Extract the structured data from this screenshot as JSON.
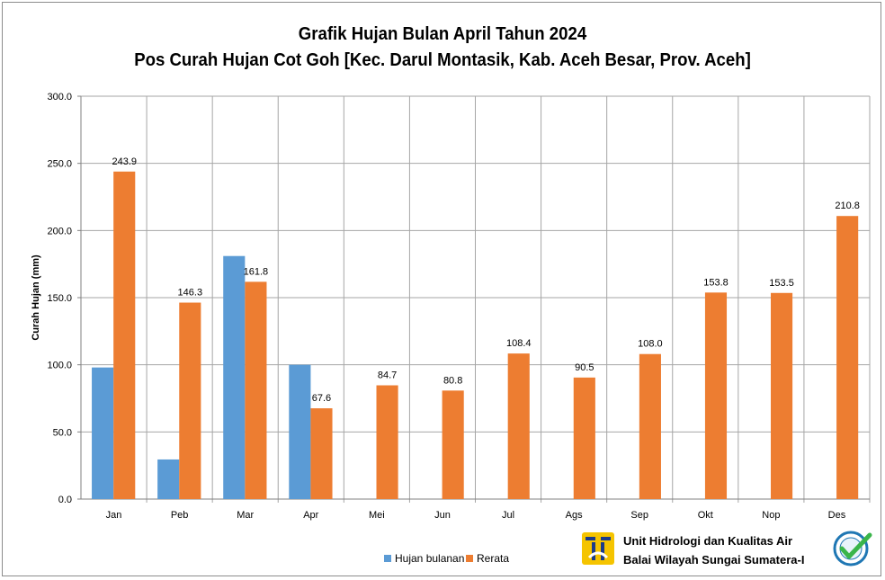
{
  "chart_data": {
    "type": "bar",
    "title": "Grafik Hujan  Bulan April Tahun 2024",
    "subtitle": "Pos Curah Hujan Cot Goh [Kec. Darul Montasik, Kab. Aceh Besar, Prov. Aceh]",
    "xlabel": "",
    "ylabel": "Curah Hujan (mm)",
    "ylim": [
      0,
      300
    ],
    "yticks": [
      "0.0",
      "50.0",
      "100.0",
      "150.0",
      "200.0",
      "250.0",
      "300.0"
    ],
    "grid": true,
    "legend_position": "bottom",
    "categories": [
      "Jan",
      "Peb",
      "Mar",
      "Apr",
      "Mei",
      "Jun",
      "Jul",
      "Ags",
      "Sep",
      "Okt",
      "Nop",
      "Des"
    ],
    "series": [
      {
        "name": "Hujan bulanan",
        "color": "#5b9bd5",
        "values": [
          98,
          29.5,
          181,
          100,
          null,
          null,
          null,
          null,
          null,
          null,
          null,
          null
        ]
      },
      {
        "name": "Rerata",
        "color": "#ed7d31",
        "values": [
          243.9,
          146.3,
          161.8,
          67.6,
          84.7,
          80.8,
          108.4,
          90.5,
          108.0,
          153.8,
          153.5,
          210.8
        ],
        "labels": [
          "243.9",
          "146.3",
          "161.8",
          "67.6",
          "84.7",
          "80.8",
          "108.4",
          "90.5",
          "108.0",
          "153.8",
          "153.5",
          "210.8"
        ]
      }
    ]
  },
  "logo": {
    "line1": "Unit Hidrologi dan Kualitas Air",
    "line2": "Balai Wilayah Sungai Sumatera-I",
    "pu_icon": "pu-logo-icon",
    "cert_icon": "certified-badge-icon",
    "pu_color": "#f5c400",
    "cert_color": "#1f77b4",
    "check_color": "#3ab54a"
  }
}
